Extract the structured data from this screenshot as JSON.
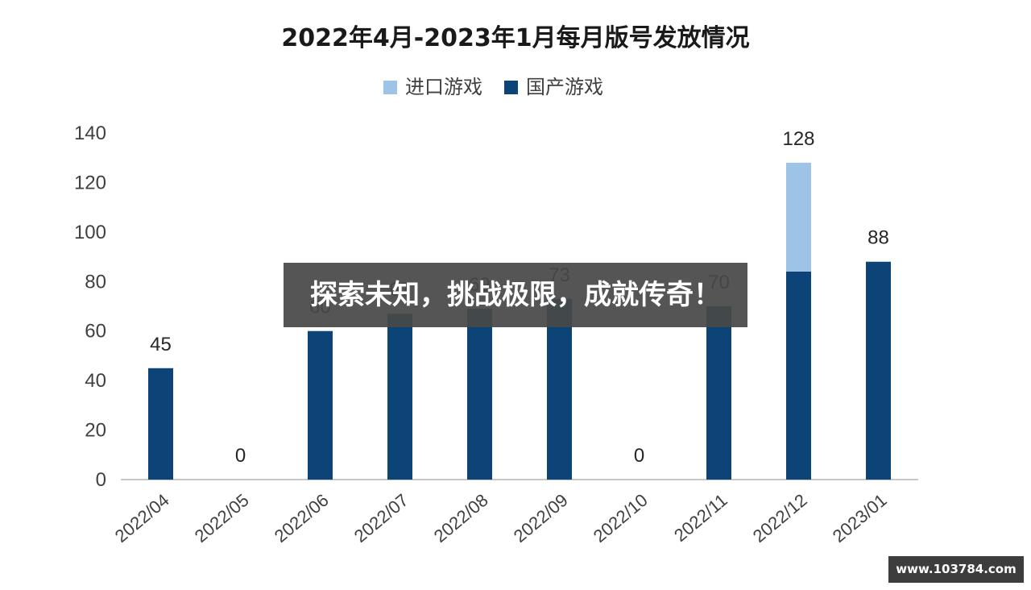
{
  "chart_data": {
    "type": "bar",
    "stacked": true,
    "title": "2022年4月-2023年1月每月版号发放情况",
    "categories": [
      "2022/04",
      "2022/05",
      "2022/06",
      "2022/07",
      "2022/08",
      "2022/09",
      "2022/10",
      "2022/11",
      "2022/12",
      "2023/01"
    ],
    "series": [
      {
        "name": "国产游戏",
        "color": "#0d4478",
        "values": [
          45,
          0,
          60,
          67,
          69,
          73,
          0,
          70,
          84,
          88
        ]
      },
      {
        "name": "进口游戏",
        "color": "#9dc3e6",
        "values": [
          0,
          0,
          0,
          0,
          0,
          0,
          0,
          0,
          44,
          0
        ]
      }
    ],
    "totals": [
      45,
      0,
      60,
      67,
      69,
      73,
      0,
      70,
      128,
      88
    ],
    "total_labels": [
      "45",
      "0",
      "60",
      "67",
      "69",
      "73",
      "0",
      "70",
      "128",
      "88"
    ],
    "legend": {
      "position": "top",
      "order": [
        "进口游戏",
        "国产游戏"
      ]
    },
    "ylim": [
      0,
      140
    ],
    "yticks": [
      0,
      20,
      40,
      60,
      80,
      100,
      120,
      140
    ],
    "grid": false,
    "xlabel": "",
    "ylabel": ""
  },
  "overlay": {
    "banner_text": "探索未知，挑战极限，成就传奇！",
    "banner_color": "#484848",
    "watermark_text": "www.103784.com",
    "watermark_color": "#3d3d3d"
  }
}
